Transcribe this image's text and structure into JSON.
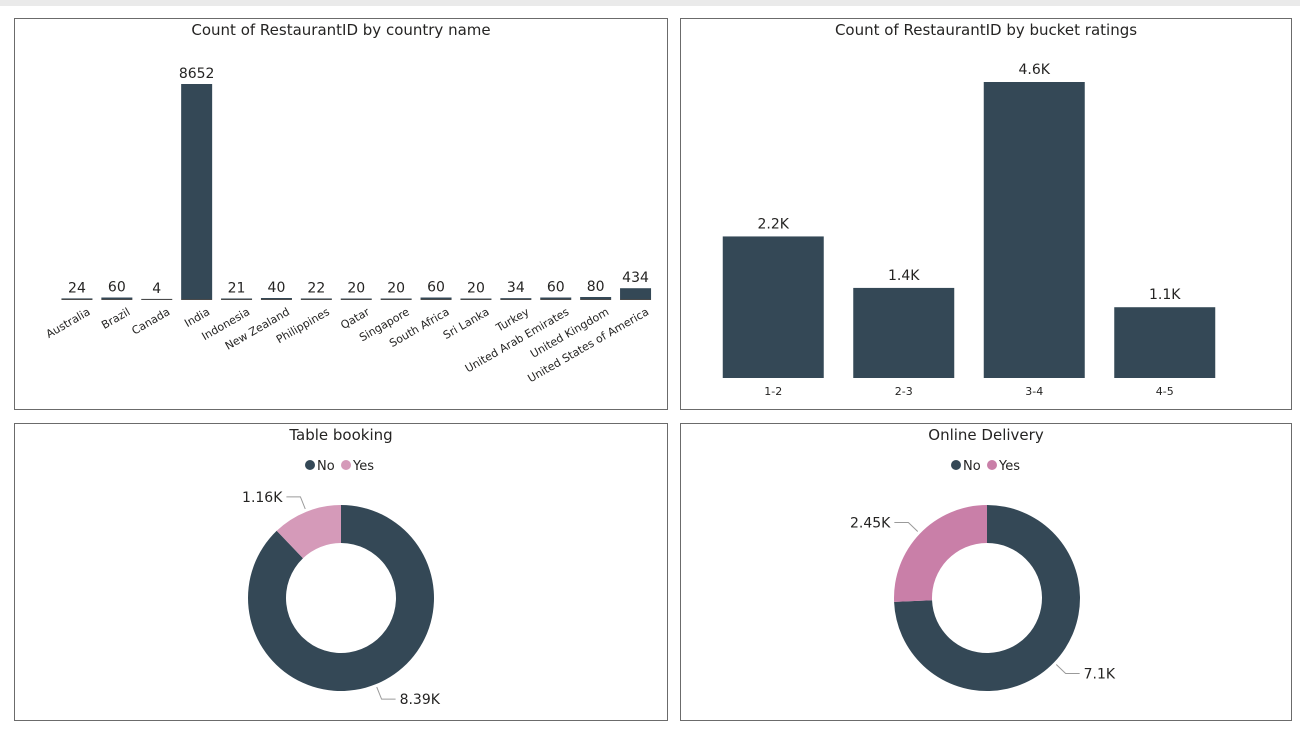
{
  "colors": {
    "bar": "#344856",
    "no": "#344856",
    "yes_table": "#d59ab9",
    "yes_online": "#c97fa8",
    "baseline": "#4a4a4a",
    "leader": "#9a9a9a"
  },
  "chart_data": [
    {
      "id": "country",
      "type": "bar",
      "title": "Count of RestaurantID by country name",
      "categories": [
        "Australia",
        "Brazil",
        "Canada",
        "India",
        "Indonesia",
        "New Zealand",
        "Philippines",
        "Qatar",
        "Singapore",
        "South Africa",
        "Sri Lanka",
        "Turkey",
        "United Arab Emirates",
        "United Kingdom",
        "United States of America"
      ],
      "values": [
        24,
        60,
        4,
        8652,
        21,
        40,
        22,
        20,
        20,
        60,
        20,
        34,
        60,
        80,
        434
      ],
      "value_labels": [
        "24",
        "60",
        "4",
        "8652",
        "21",
        "40",
        "22",
        "20",
        "20",
        "60",
        "20",
        "34",
        "60",
        "80",
        "434"
      ],
      "ylim": [
        0,
        8652
      ]
    },
    {
      "id": "ratings",
      "type": "bar",
      "title": "Count of RestaurantID by bucket ratings",
      "categories": [
        "1-2",
        "2-3",
        "3-4",
        "4-5"
      ],
      "values": [
        2200,
        1400,
        4600,
        1100
      ],
      "value_labels": [
        "2.2K",
        "1.4K",
        "4.6K",
        "1.1K"
      ],
      "ylim": [
        0,
        4600
      ]
    },
    {
      "id": "table",
      "type": "pie",
      "title": "Table booking",
      "legend": [
        "No",
        "Yes"
      ],
      "legend_position": "top-center",
      "values": [
        8390,
        1160
      ],
      "value_labels": [
        "8.39K",
        "1.16K"
      ]
    },
    {
      "id": "online",
      "type": "pie",
      "title": "Online Delivery",
      "legend": [
        "No",
        "Yes"
      ],
      "legend_position": "top-center",
      "values": [
        7100,
        2450
      ],
      "value_labels": [
        "7.1K",
        "2.45K"
      ]
    }
  ]
}
